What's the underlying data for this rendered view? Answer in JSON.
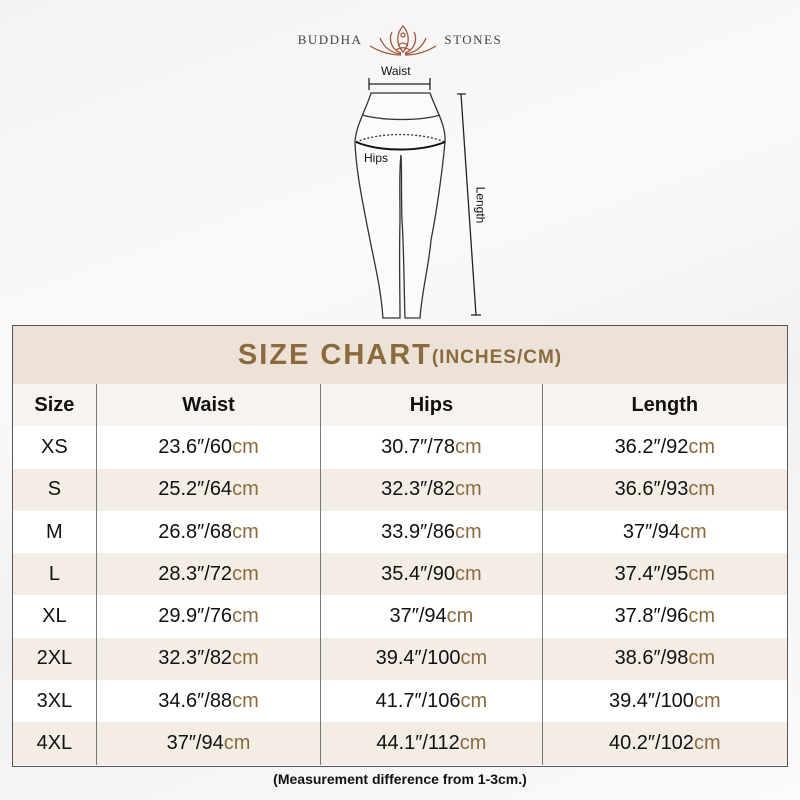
{
  "brand": {
    "left": "BUDDHA",
    "right": "STONES",
    "logo_icon": "lotus-meditation-icon"
  },
  "diagram": {
    "waist": "Waist",
    "hips": "Hips",
    "length": "Length"
  },
  "chart": {
    "title": "SIZE CHART",
    "unit": "(INCHES/CM)",
    "headers": [
      "Size",
      "Waist",
      "Hips",
      "Length"
    ],
    "rows": [
      {
        "size": "XS",
        "waist": {
          "in": "23.6″/60",
          "cm": "cm"
        },
        "hips": {
          "in": "30.7″/78",
          "cm": "cm"
        },
        "length": {
          "in": "36.2″/92",
          "cm": "cm"
        }
      },
      {
        "size": "S",
        "waist": {
          "in": "25.2″/64",
          "cm": "cm"
        },
        "hips": {
          "in": "32.3″/82",
          "cm": "cm"
        },
        "length": {
          "in": "36.6″/93",
          "cm": "cm"
        }
      },
      {
        "size": "M",
        "waist": {
          "in": "26.8″/68",
          "cm": "cm"
        },
        "hips": {
          "in": "33.9″/86",
          "cm": "cm"
        },
        "length": {
          "in": "37″/94",
          "cm": "cm"
        }
      },
      {
        "size": "L",
        "waist": {
          "in": "28.3″/72",
          "cm": "cm"
        },
        "hips": {
          "in": "35.4″/90",
          "cm": "cm"
        },
        "length": {
          "in": "37.4″/95",
          "cm": "cm"
        }
      },
      {
        "size": "XL",
        "waist": {
          "in": "29.9″/76",
          "cm": "cm"
        },
        "hips": {
          "in": "37″/94",
          "cm": "cm"
        },
        "length": {
          "in": "37.8″/96",
          "cm": "cm"
        }
      },
      {
        "size": "2XL",
        "waist": {
          "in": "32.3″/82",
          "cm": "cm"
        },
        "hips": {
          "in": "39.4″/100",
          "cm": "cm"
        },
        "length": {
          "in": "38.6″/98",
          "cm": "cm"
        }
      },
      {
        "size": "3XL",
        "waist": {
          "in": "34.6″/88",
          "cm": "cm"
        },
        "hips": {
          "in": "41.7″/106",
          "cm": "cm"
        },
        "length": {
          "in": "39.4″/100",
          "cm": "cm"
        }
      },
      {
        "size": "4XL",
        "waist": {
          "in": "37″/94",
          "cm": "cm"
        },
        "hips": {
          "in": "44.1″/112",
          "cm": "cm"
        },
        "length": {
          "in": "40.2″/102",
          "cm": "cm"
        }
      }
    ]
  },
  "note": "(Measurement difference from 1-3cm.)",
  "colors": {
    "accent": "#8b6b3d",
    "title_band": "#ede2d8",
    "alt_row": "#f4ede6"
  }
}
